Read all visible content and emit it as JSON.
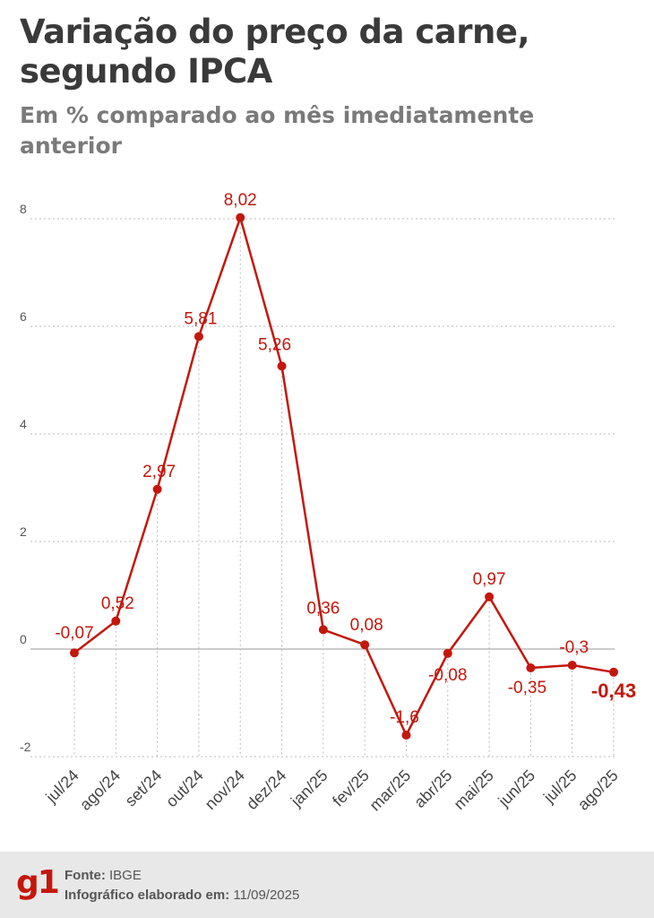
{
  "header": {
    "title": "Variação do preço da carne, segundo IPCA",
    "subtitle": "Em % comparado ao mês imediatamente anterior"
  },
  "chart_data": {
    "type": "line",
    "x": [
      "jul/24",
      "ago/24",
      "set/24",
      "out/24",
      "nov/24",
      "dez/24",
      "jan/25",
      "fev/25",
      "mar/25",
      "abr/25",
      "mai/25",
      "jun/25",
      "jul/25",
      "ago/25"
    ],
    "series": [
      {
        "values": [
          -0.07,
          0.52,
          2.97,
          5.81,
          8.02,
          5.26,
          0.36,
          0.08,
          -1.6,
          -0.08,
          0.97,
          -0.35,
          -0.3,
          -0.43
        ]
      }
    ],
    "data_labels": [
      "-0,07",
      "0,52",
      "2,97",
      "5,81",
      "8,02",
      "5,26",
      "0,36",
      "0,08",
      "-1,6",
      "-0,08",
      "0,97",
      "-0,35",
      "-0,3",
      "-0,43"
    ],
    "y_ticks": [
      8,
      6,
      4,
      2,
      0,
      -2
    ],
    "y_tick_labels": [
      "8",
      "6",
      "4",
      "2",
      "0",
      "-2"
    ],
    "ylim": [
      -2,
      8
    ],
    "highlight_last": true,
    "grid": true,
    "colors": {
      "line": "#c4170c",
      "grid": "#bbbbbb",
      "zero": "#999999",
      "text": "#555555"
    }
  },
  "footer": {
    "logo": "g1",
    "source_label": "Fonte:",
    "source_value": "IBGE",
    "date_label": "Infográfico elaborado em:",
    "date_value": "11/09/2025"
  }
}
